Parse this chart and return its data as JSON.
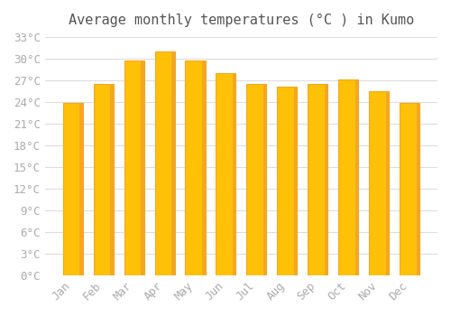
{
  "title": "Average monthly temperatures (°C ) in Kumo",
  "months": [
    "Jan",
    "Feb",
    "Mar",
    "Apr",
    "May",
    "Jun",
    "Jul",
    "Aug",
    "Sep",
    "Oct",
    "Nov",
    "Dec"
  ],
  "values": [
    23.9,
    26.5,
    29.7,
    31.0,
    29.7,
    28.0,
    26.5,
    26.1,
    26.5,
    27.1,
    25.5,
    23.9
  ],
  "bar_color": "#FFC107",
  "bar_edge_color": "#F5A623",
  "background_color": "#FFFFFF",
  "grid_color": "#DDDDDD",
  "tick_label_color": "#AAAAAA",
  "title_color": "#555555",
  "ylim": [
    0,
    33
  ],
  "ytick_step": 3,
  "title_fontsize": 11,
  "tick_fontsize": 9
}
